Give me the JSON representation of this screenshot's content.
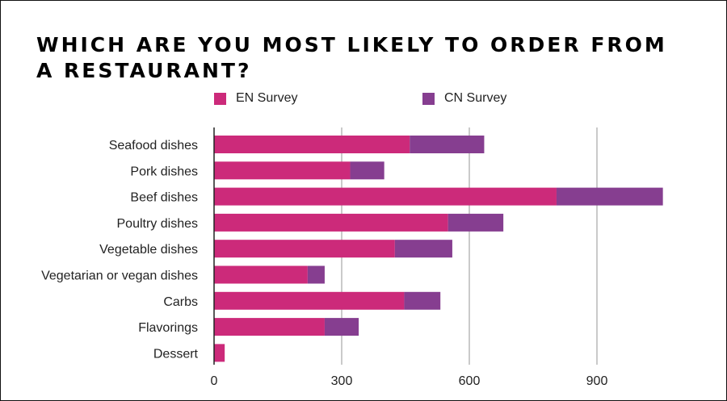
{
  "chart_data": {
    "type": "bar",
    "orientation": "horizontal",
    "stacked": true,
    "title": "WHICH ARE YOU MOST LIKELY TO ORDER FROM A RESTAURANT?",
    "categories": [
      "Seafood dishes",
      "Pork dishes",
      "Beef dishes",
      "Poultry dishes",
      "Vegetable dishes",
      "Vegetarian or vegan dishes",
      "Carbs",
      "Flavorings",
      "Dessert"
    ],
    "series": [
      {
        "name": "EN Survey",
        "color": "#cc2a7a",
        "values": [
          460,
          320,
          805,
          550,
          425,
          220,
          447,
          260,
          25
        ]
      },
      {
        "name": "CN Survey",
        "color": "#863e90",
        "values": [
          175,
          80,
          250,
          130,
          135,
          40,
          85,
          80,
          0
        ]
      }
    ],
    "xlim": [
      0,
      1100
    ],
    "xticks": [
      0,
      300,
      600,
      900
    ],
    "grid": true,
    "legend_position": "top"
  }
}
